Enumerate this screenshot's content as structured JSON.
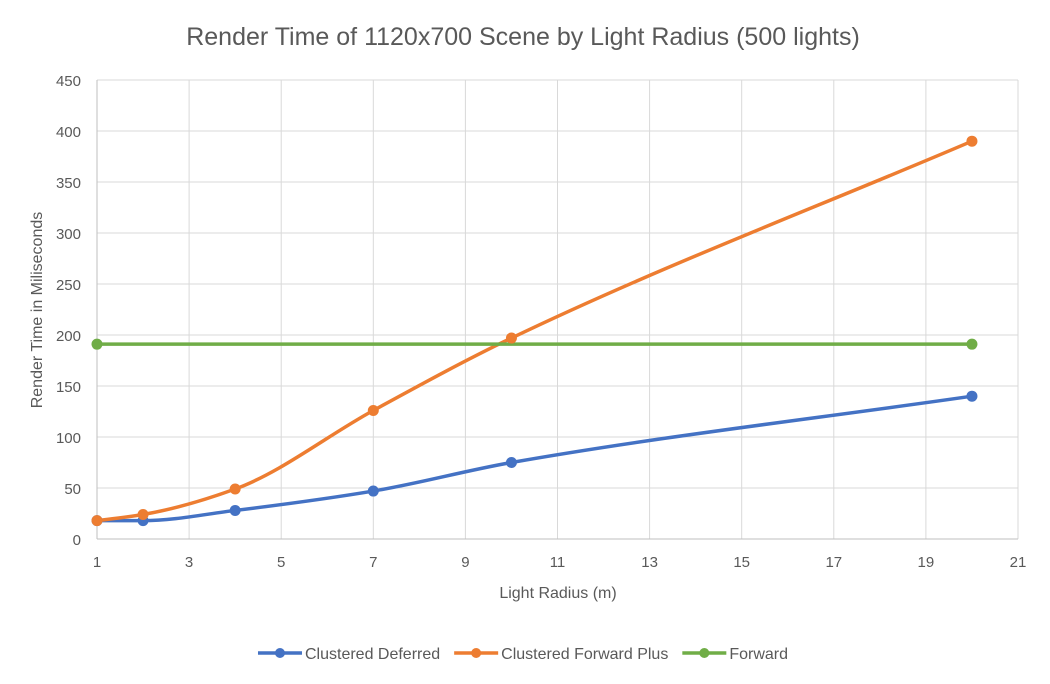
{
  "chart_data": {
    "type": "line",
    "title": "Render Time of 1120x700 Scene by Light Radius (500 lights)",
    "xlabel": "Light Radius (m)",
    "ylabel": "Render Time in Miliseconds",
    "xlim": [
      1,
      21
    ],
    "ylim": [
      0,
      450
    ],
    "x_ticks": [
      1,
      3,
      5,
      7,
      9,
      11,
      13,
      15,
      17,
      19,
      21
    ],
    "y_ticks": [
      0,
      50,
      100,
      150,
      200,
      250,
      300,
      350,
      400,
      450
    ],
    "grid": true,
    "legend_position": "bottom",
    "smoothed": true,
    "series": [
      {
        "name": "Clustered Deferred",
        "color": "#4472c4",
        "points": [
          [
            1,
            18
          ],
          [
            2,
            18
          ],
          [
            4,
            28
          ],
          [
            7,
            47
          ],
          [
            10,
            75
          ],
          [
            20,
            140
          ]
        ]
      },
      {
        "name": "Clustered Forward Plus",
        "color": "#ed7d31",
        "points": [
          [
            1,
            18
          ],
          [
            2,
            24
          ],
          [
            4,
            49
          ],
          [
            7,
            126
          ],
          [
            10,
            197
          ],
          [
            20,
            390
          ]
        ]
      },
      {
        "name": "Forward",
        "color": "#70ad47",
        "points": [
          [
            1,
            191
          ],
          [
            20,
            191
          ]
        ]
      }
    ]
  }
}
